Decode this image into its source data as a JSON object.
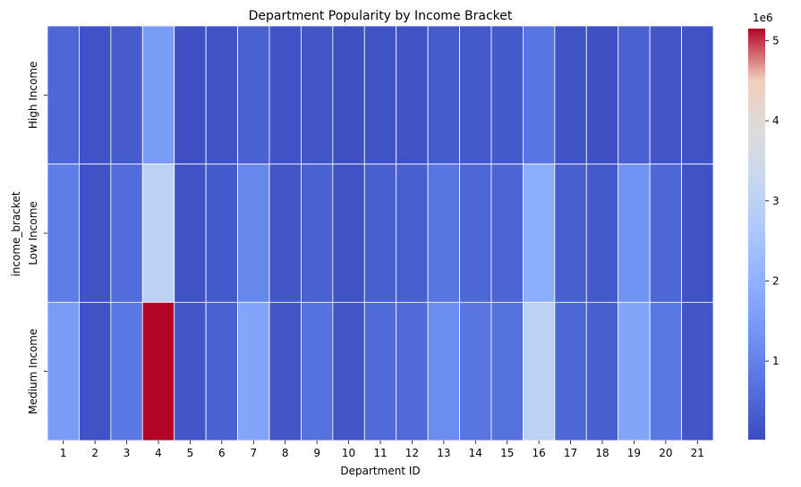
{
  "chart_data": {
    "type": "heatmap",
    "title": "Department Popularity by Income Bracket",
    "xlabel": "Department ID",
    "ylabel": "income_bracket",
    "x_categories": [
      "1",
      "2",
      "3",
      "4",
      "5",
      "6",
      "7",
      "8",
      "9",
      "10",
      "11",
      "12",
      "13",
      "14",
      "15",
      "16",
      "17",
      "18",
      "19",
      "20",
      "21"
    ],
    "y_categories": [
      "High Income",
      "Low Income",
      "Medium Income"
    ],
    "values": [
      [
        500000,
        150000,
        300000,
        1500000,
        100000,
        150000,
        400000,
        150000,
        200000,
        100000,
        150000,
        150000,
        300000,
        250000,
        250000,
        750000,
        150000,
        100000,
        400000,
        200000,
        150000
      ],
      [
        900000,
        150000,
        600000,
        3000000,
        150000,
        250000,
        1100000,
        200000,
        400000,
        150000,
        350000,
        350000,
        750000,
        500000,
        450000,
        1900000,
        350000,
        250000,
        1300000,
        500000,
        150000
      ],
      [
        1500000,
        150000,
        800000,
        5150000,
        200000,
        400000,
        1700000,
        200000,
        700000,
        200000,
        550000,
        550000,
        1200000,
        750000,
        700000,
        3000000,
        500000,
        350000,
        1700000,
        800000,
        200000
      ]
    ],
    "colormap": "coolwarm",
    "colorbar": {
      "range": [
        20000,
        5150000
      ],
      "ticks": [
        1,
        2,
        3,
        4,
        5
      ],
      "tick_values": [
        1000000,
        2000000,
        3000000,
        4000000,
        5000000
      ],
      "offset_label": "1e6"
    },
    "grid_line_color": "#ffffff"
  }
}
